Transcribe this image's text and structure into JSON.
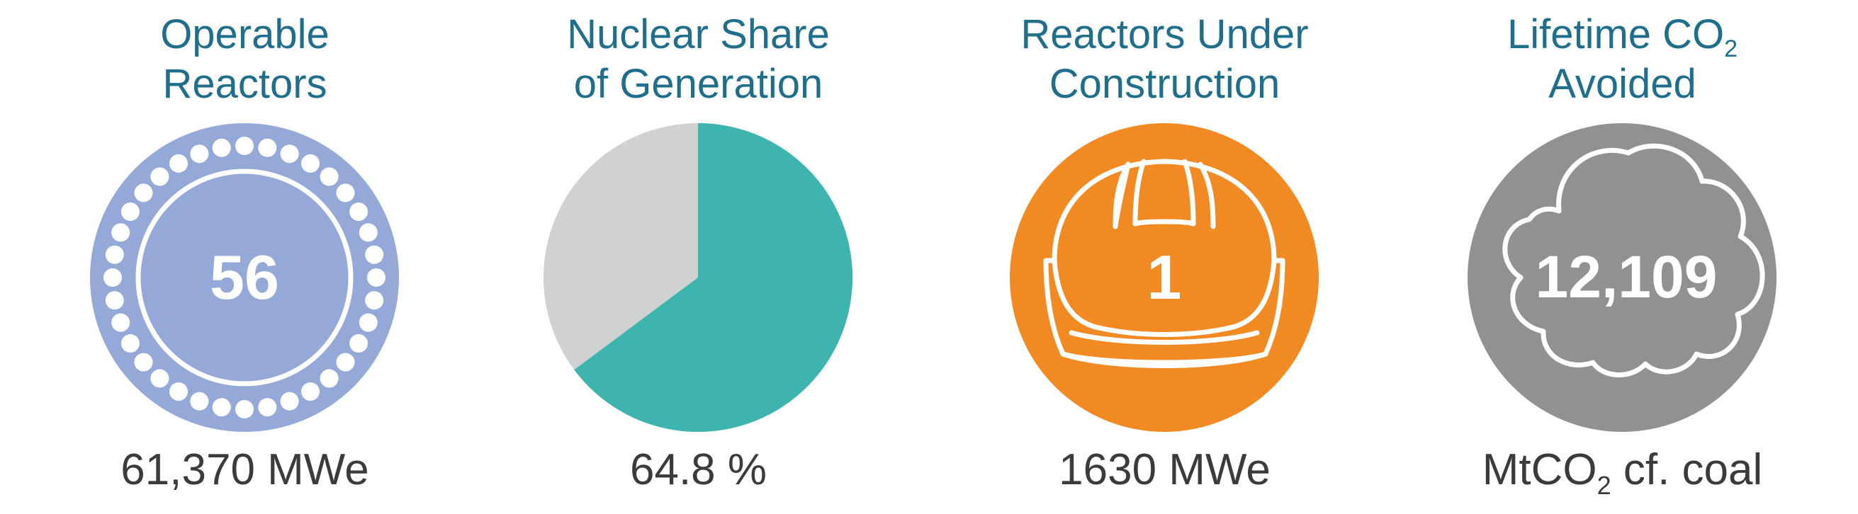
{
  "panels": [
    {
      "title_line1": "Operable",
      "title_line2": "Reactors",
      "value": "56",
      "caption": "61,370 MWe",
      "color": "#94a9d8",
      "icon": "reactor-ring-icon"
    },
    {
      "title_line1": "Nuclear Share",
      "title_line2": "of Generation",
      "caption": "64.8 %",
      "color": "#3db5ae",
      "rest_color": "#d0d1d2",
      "share_percent": 64.8,
      "icon": "pie-chart-icon"
    },
    {
      "title_line1": "Reactors Under",
      "title_line2": "Construction",
      "value": "1",
      "caption": "1630 MWe",
      "color": "#f28a24",
      "icon": "hard-hat-icon"
    },
    {
      "title_line1_pre": "Lifetime CO",
      "title_line1_sub": "2",
      "title_line2": "Avoided",
      "value": "12,109",
      "caption_pre": "MtCO",
      "caption_sub": "2",
      "caption_post": " cf. coal",
      "color": "#909193",
      "icon": "cloud-icon"
    }
  ]
}
